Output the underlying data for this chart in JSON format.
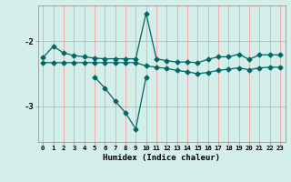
{
  "title": "",
  "xlabel": "Humidex (Indice chaleur)",
  "bg_color": "#d4eeea",
  "grid_color": "#f5a0a0",
  "line_color": "#006666",
  "ylim": [
    -3.55,
    -1.45
  ],
  "xlim": [
    -0.5,
    23.5
  ],
  "yticks": [
    -3,
    -2
  ],
  "xticks": [
    0,
    1,
    2,
    3,
    4,
    5,
    6,
    7,
    8,
    9,
    10,
    11,
    12,
    13,
    14,
    15,
    16,
    17,
    18,
    19,
    20,
    21,
    22,
    23
  ],
  "series1_x": [
    0,
    1,
    2,
    3,
    4,
    5,
    6,
    7,
    8,
    9,
    10,
    11,
    12,
    13,
    14,
    15,
    16,
    17,
    18,
    19,
    20,
    21,
    22,
    23
  ],
  "series1_y": [
    -2.25,
    -2.08,
    -2.18,
    -2.22,
    -2.24,
    -2.26,
    -2.27,
    -2.27,
    -2.27,
    -2.27,
    -1.57,
    -2.27,
    -2.3,
    -2.32,
    -2.32,
    -2.33,
    -2.28,
    -2.24,
    -2.24,
    -2.2,
    -2.28,
    -2.21,
    -2.21,
    -2.21
  ],
  "series2_x": [
    0,
    1,
    2,
    3,
    4,
    5,
    6,
    7,
    8,
    9,
    10,
    11,
    12,
    13,
    14,
    15,
    16,
    17,
    18,
    19,
    20,
    21,
    22,
    23
  ],
  "series2_y": [
    -2.33,
    -2.33,
    -2.33,
    -2.33,
    -2.33,
    -2.33,
    -2.33,
    -2.33,
    -2.33,
    -2.33,
    -2.38,
    -2.4,
    -2.42,
    -2.45,
    -2.47,
    -2.5,
    -2.48,
    -2.45,
    -2.43,
    -2.41,
    -2.44,
    -2.41,
    -2.4,
    -2.4
  ],
  "series3_x": [
    5,
    6,
    7,
    8,
    9,
    10
  ],
  "series3_y": [
    -2.55,
    -2.72,
    -2.92,
    -3.1,
    -3.35,
    -2.55
  ]
}
